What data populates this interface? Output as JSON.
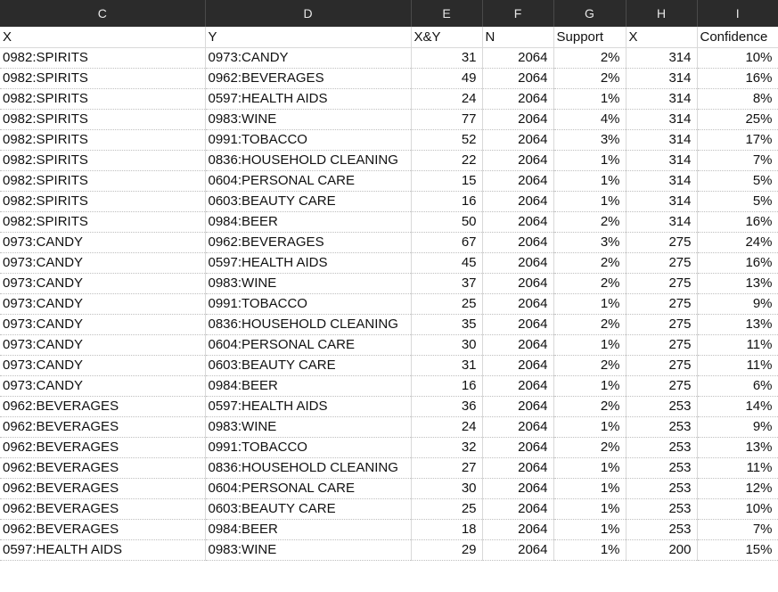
{
  "column_letters": [
    "C",
    "D",
    "E",
    "F",
    "G",
    "H",
    "I"
  ],
  "header_row": [
    "X",
    "Y",
    "X&Y",
    "N",
    "Support",
    "X",
    "Confidence"
  ],
  "rows": [
    [
      "0982:SPIRITS",
      "0973:CANDY",
      "31",
      "2064",
      "2%",
      "314",
      "10%"
    ],
    [
      "0982:SPIRITS",
      "0962:BEVERAGES",
      "49",
      "2064",
      "2%",
      "314",
      "16%"
    ],
    [
      "0982:SPIRITS",
      "0597:HEALTH AIDS",
      "24",
      "2064",
      "1%",
      "314",
      "8%"
    ],
    [
      "0982:SPIRITS",
      "0983:WINE",
      "77",
      "2064",
      "4%",
      "314",
      "25%"
    ],
    [
      "0982:SPIRITS",
      "0991:TOBACCO",
      "52",
      "2064",
      "3%",
      "314",
      "17%"
    ],
    [
      "0982:SPIRITS",
      "0836:HOUSEHOLD CLEANING",
      "22",
      "2064",
      "1%",
      "314",
      "7%"
    ],
    [
      "0982:SPIRITS",
      "0604:PERSONAL CARE",
      "15",
      "2064",
      "1%",
      "314",
      "5%"
    ],
    [
      "0982:SPIRITS",
      "0603:BEAUTY CARE",
      "16",
      "2064",
      "1%",
      "314",
      "5%"
    ],
    [
      "0982:SPIRITS",
      "0984:BEER",
      "50",
      "2064",
      "2%",
      "314",
      "16%"
    ],
    [
      "0973:CANDY",
      "0962:BEVERAGES",
      "67",
      "2064",
      "3%",
      "275",
      "24%"
    ],
    [
      "0973:CANDY",
      "0597:HEALTH AIDS",
      "45",
      "2064",
      "2%",
      "275",
      "16%"
    ],
    [
      "0973:CANDY",
      "0983:WINE",
      "37",
      "2064",
      "2%",
      "275",
      "13%"
    ],
    [
      "0973:CANDY",
      "0991:TOBACCO",
      "25",
      "2064",
      "1%",
      "275",
      "9%"
    ],
    [
      "0973:CANDY",
      "0836:HOUSEHOLD CLEANING",
      "35",
      "2064",
      "2%",
      "275",
      "13%"
    ],
    [
      "0973:CANDY",
      "0604:PERSONAL CARE",
      "30",
      "2064",
      "1%",
      "275",
      "11%"
    ],
    [
      "0973:CANDY",
      "0603:BEAUTY CARE",
      "31",
      "2064",
      "2%",
      "275",
      "11%"
    ],
    [
      "0973:CANDY",
      "0984:BEER",
      "16",
      "2064",
      "1%",
      "275",
      "6%"
    ],
    [
      "0962:BEVERAGES",
      "0597:HEALTH AIDS",
      "36",
      "2064",
      "2%",
      "253",
      "14%"
    ],
    [
      "0962:BEVERAGES",
      "0983:WINE",
      "24",
      "2064",
      "1%",
      "253",
      "9%"
    ],
    [
      "0962:BEVERAGES",
      "0991:TOBACCO",
      "32",
      "2064",
      "2%",
      "253",
      "13%"
    ],
    [
      "0962:BEVERAGES",
      "0836:HOUSEHOLD CLEANING",
      "27",
      "2064",
      "1%",
      "253",
      "11%"
    ],
    [
      "0962:BEVERAGES",
      "0604:PERSONAL CARE",
      "30",
      "2064",
      "1%",
      "253",
      "12%"
    ],
    [
      "0962:BEVERAGES",
      "0603:BEAUTY CARE",
      "25",
      "2064",
      "1%",
      "253",
      "10%"
    ],
    [
      "0962:BEVERAGES",
      "0984:BEER",
      "18",
      "2064",
      "1%",
      "253",
      "7%"
    ],
    [
      "0597:HEALTH AIDS",
      "0983:WINE",
      "29",
      "2064",
      "1%",
      "200",
      "15%"
    ]
  ]
}
